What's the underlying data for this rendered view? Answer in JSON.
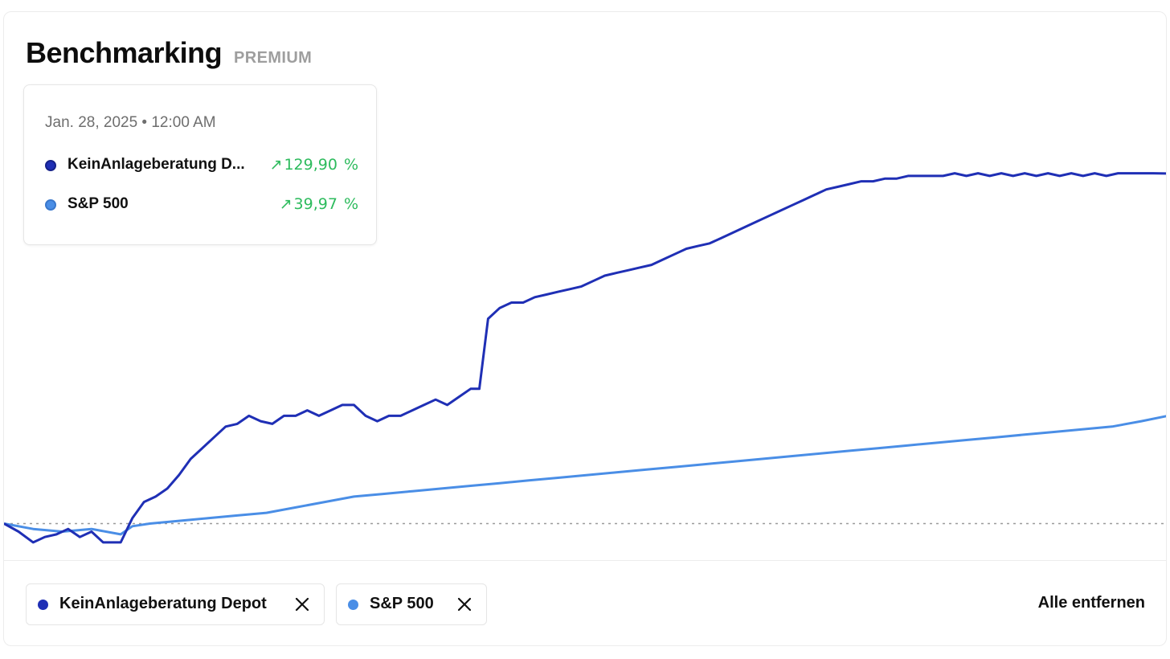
{
  "header": {
    "title": "Benchmarking",
    "badge": "PREMIUM"
  },
  "tooltip": {
    "date": "Jan. 28, 2025 • 12:00 AM",
    "items": [
      {
        "name": "KeinAnlageberatung D...",
        "arrow": "↗",
        "value": "129,90",
        "unit": "%"
      },
      {
        "name": "S&P 500",
        "arrow": "↗",
        "value": "39,97",
        "unit": "%"
      }
    ]
  },
  "legend": {
    "chips": [
      {
        "label": "KeinAnlageberatung Depot",
        "close_icon": "close-icon"
      },
      {
        "label": "S&P 500",
        "close_icon": "close-icon"
      }
    ],
    "clear_all": "Alle entfernen"
  },
  "colors": {
    "depot": "#1f2fb5",
    "sp500": "#4a8ee6",
    "positive": "#2dbb5d",
    "baseline": "#9a9a9a"
  },
  "chart_data": {
    "type": "line",
    "title": "Benchmarking",
    "xlabel": "",
    "ylabel": "",
    "unit": "%",
    "grid": false,
    "baseline": 0,
    "ylim": [
      -10,
      160
    ],
    "x_count": 400,
    "series": [
      {
        "name": "KeinAnlageberatung Depot",
        "color": "#1f2fb5",
        "points": [
          [
            0,
            0
          ],
          [
            5,
            -3
          ],
          [
            10,
            -7
          ],
          [
            14,
            -5
          ],
          [
            18,
            -4
          ],
          [
            22,
            -2
          ],
          [
            26,
            -5
          ],
          [
            30,
            -3
          ],
          [
            34,
            -7
          ],
          [
            40,
            -7
          ],
          [
            44,
            2
          ],
          [
            48,
            8
          ],
          [
            52,
            10
          ],
          [
            56,
            13
          ],
          [
            60,
            18
          ],
          [
            64,
            24
          ],
          [
            68,
            28
          ],
          [
            72,
            32
          ],
          [
            76,
            36
          ],
          [
            80,
            37
          ],
          [
            84,
            40
          ],
          [
            88,
            38
          ],
          [
            92,
            37
          ],
          [
            96,
            40
          ],
          [
            100,
            40
          ],
          [
            104,
            42
          ],
          [
            108,
            40
          ],
          [
            112,
            42
          ],
          [
            116,
            44
          ],
          [
            120,
            44
          ],
          [
            124,
            40
          ],
          [
            128,
            38
          ],
          [
            132,
            40
          ],
          [
            136,
            40
          ],
          [
            140,
            42
          ],
          [
            144,
            44
          ],
          [
            148,
            46
          ],
          [
            152,
            44
          ],
          [
            156,
            47
          ],
          [
            160,
            50
          ],
          [
            163,
            50
          ],
          [
            166,
            76
          ],
          [
            170,
            80
          ],
          [
            174,
            82
          ],
          [
            178,
            82
          ],
          [
            182,
            84
          ],
          [
            186,
            85
          ],
          [
            190,
            86
          ],
          [
            194,
            87
          ],
          [
            198,
            88
          ],
          [
            202,
            90
          ],
          [
            206,
            92
          ],
          [
            210,
            93
          ],
          [
            214,
            94
          ],
          [
            218,
            95
          ],
          [
            222,
            96
          ],
          [
            226,
            98
          ],
          [
            230,
            100
          ],
          [
            234,
            102
          ],
          [
            238,
            103
          ],
          [
            242,
            104
          ],
          [
            246,
            106
          ],
          [
            250,
            108
          ],
          [
            254,
            110
          ],
          [
            258,
            112
          ],
          [
            262,
            114
          ],
          [
            266,
            116
          ],
          [
            270,
            118
          ],
          [
            274,
            120
          ],
          [
            278,
            122
          ],
          [
            282,
            124
          ],
          [
            286,
            125
          ],
          [
            290,
            126
          ],
          [
            294,
            127
          ],
          [
            298,
            127
          ],
          [
            302,
            128
          ],
          [
            306,
            128
          ],
          [
            310,
            129
          ],
          [
            314,
            129
          ],
          [
            318,
            129
          ],
          [
            322,
            129
          ],
          [
            326,
            130
          ],
          [
            330,
            129
          ],
          [
            334,
            130
          ],
          [
            338,
            129
          ],
          [
            342,
            130
          ],
          [
            346,
            129
          ],
          [
            350,
            130
          ],
          [
            354,
            129
          ],
          [
            358,
            130
          ],
          [
            362,
            129
          ],
          [
            366,
            130
          ],
          [
            370,
            129
          ],
          [
            374,
            130
          ],
          [
            378,
            129
          ],
          [
            382,
            130
          ],
          [
            386,
            130
          ],
          [
            390,
            130
          ],
          [
            394,
            130
          ],
          [
            399,
            129.9
          ]
        ]
      },
      {
        "name": "S&P 500",
        "color": "#4a8ee6",
        "points": [
          [
            0,
            0
          ],
          [
            10,
            -2
          ],
          [
            20,
            -3
          ],
          [
            30,
            -2
          ],
          [
            40,
            -4
          ],
          [
            44,
            -1
          ],
          [
            50,
            0
          ],
          [
            60,
            1
          ],
          [
            70,
            2
          ],
          [
            80,
            3
          ],
          [
            90,
            4
          ],
          [
            100,
            6
          ],
          [
            110,
            8
          ],
          [
            120,
            10
          ],
          [
            130,
            11
          ],
          [
            140,
            12
          ],
          [
            150,
            13
          ],
          [
            160,
            14
          ],
          [
            170,
            15
          ],
          [
            180,
            16
          ],
          [
            190,
            17
          ],
          [
            200,
            18
          ],
          [
            210,
            19
          ],
          [
            220,
            20
          ],
          [
            230,
            21
          ],
          [
            240,
            22
          ],
          [
            250,
            23
          ],
          [
            260,
            24
          ],
          [
            270,
            25
          ],
          [
            280,
            26
          ],
          [
            290,
            27
          ],
          [
            300,
            28
          ],
          [
            310,
            29
          ],
          [
            320,
            30
          ],
          [
            330,
            31
          ],
          [
            340,
            32
          ],
          [
            350,
            33
          ],
          [
            360,
            34
          ],
          [
            370,
            35
          ],
          [
            380,
            36
          ],
          [
            390,
            38
          ],
          [
            399,
            39.97
          ]
        ]
      }
    ]
  }
}
